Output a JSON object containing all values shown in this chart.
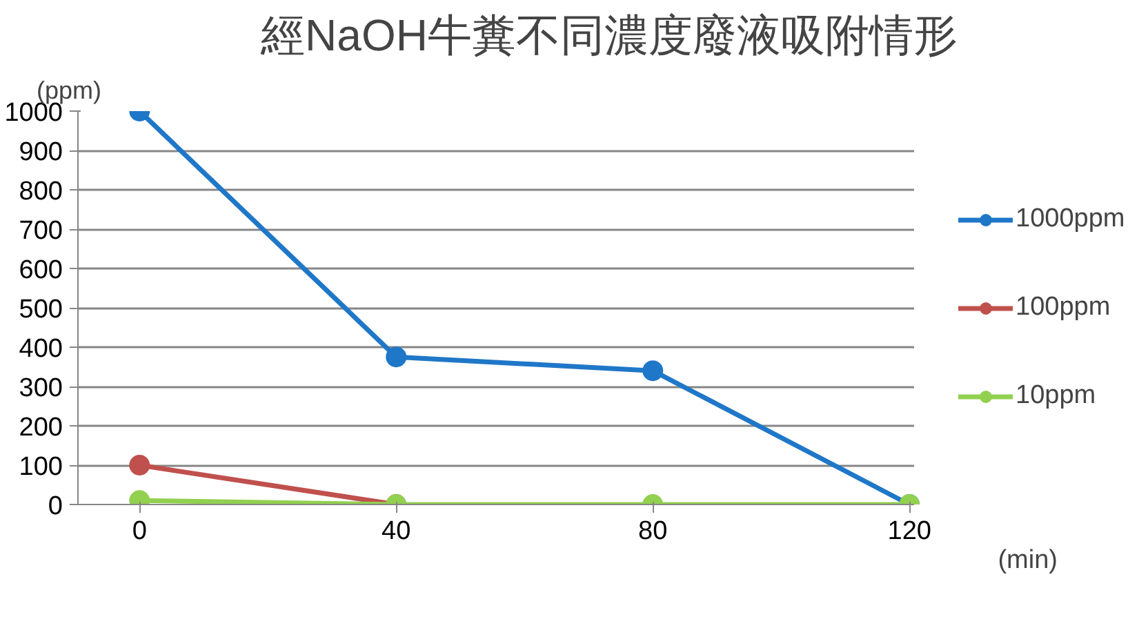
{
  "chart_data": {
    "type": "line",
    "title": "經NaOH牛糞不同濃度廢液吸附情形",
    "ylabel": "(ppm)",
    "xlabel": "(min)",
    "categories": [
      "0",
      "40",
      "80",
      "120"
    ],
    "series": [
      {
        "name": "1000ppm",
        "color": "#1f77c8",
        "values": [
          1000,
          375,
          340,
          0
        ]
      },
      {
        "name": "100ppm",
        "color": "#c0504d",
        "values": [
          100,
          0,
          null,
          null
        ]
      },
      {
        "name": "10ppm",
        "color": "#92d050",
        "values": [
          10,
          0,
          0,
          0
        ]
      }
    ],
    "ylim": [
      0,
      1000
    ],
    "yticks": [
      0,
      100,
      200,
      300,
      400,
      500,
      600,
      700,
      800,
      900,
      1000
    ],
    "grid": "y",
    "legend": "right",
    "marker": "circle",
    "line_style": "solid"
  }
}
